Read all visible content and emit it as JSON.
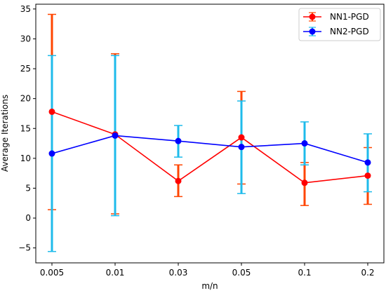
{
  "chart_data": {
    "type": "line",
    "categories": [
      "0.005",
      "0.01",
      "0.03",
      "0.05",
      "0.1",
      "0.2"
    ],
    "xlabel": "m/n",
    "ylabel": "Average Iterations",
    "ylim": [
      -7.5,
      35.8
    ],
    "yticks": [
      -5,
      0,
      5,
      10,
      15,
      20,
      25,
      30,
      35
    ],
    "grid": false,
    "legend_position": "top-right",
    "series": [
      {
        "name": "NN1-PGD",
        "color": "#ff0000",
        "errcolor": "#ff4500",
        "values": [
          17.8,
          14.0,
          6.2,
          13.5,
          5.9,
          7.1
        ],
        "err_low": [
          1.4,
          0.7,
          3.6,
          5.7,
          2.1,
          2.3
        ],
        "err_high": [
          34.1,
          27.5,
          8.9,
          21.2,
          9.3,
          11.8
        ]
      },
      {
        "name": "NN2-PGD",
        "color": "#0000ff",
        "errcolor": "#1ebbeb",
        "values": [
          10.8,
          13.8,
          12.9,
          11.9,
          12.5,
          9.3
        ],
        "err_low": [
          -5.6,
          0.4,
          10.2,
          4.1,
          8.9,
          4.4
        ],
        "err_high": [
          27.2,
          27.2,
          15.5,
          19.6,
          16.1,
          14.1
        ]
      }
    ]
  }
}
